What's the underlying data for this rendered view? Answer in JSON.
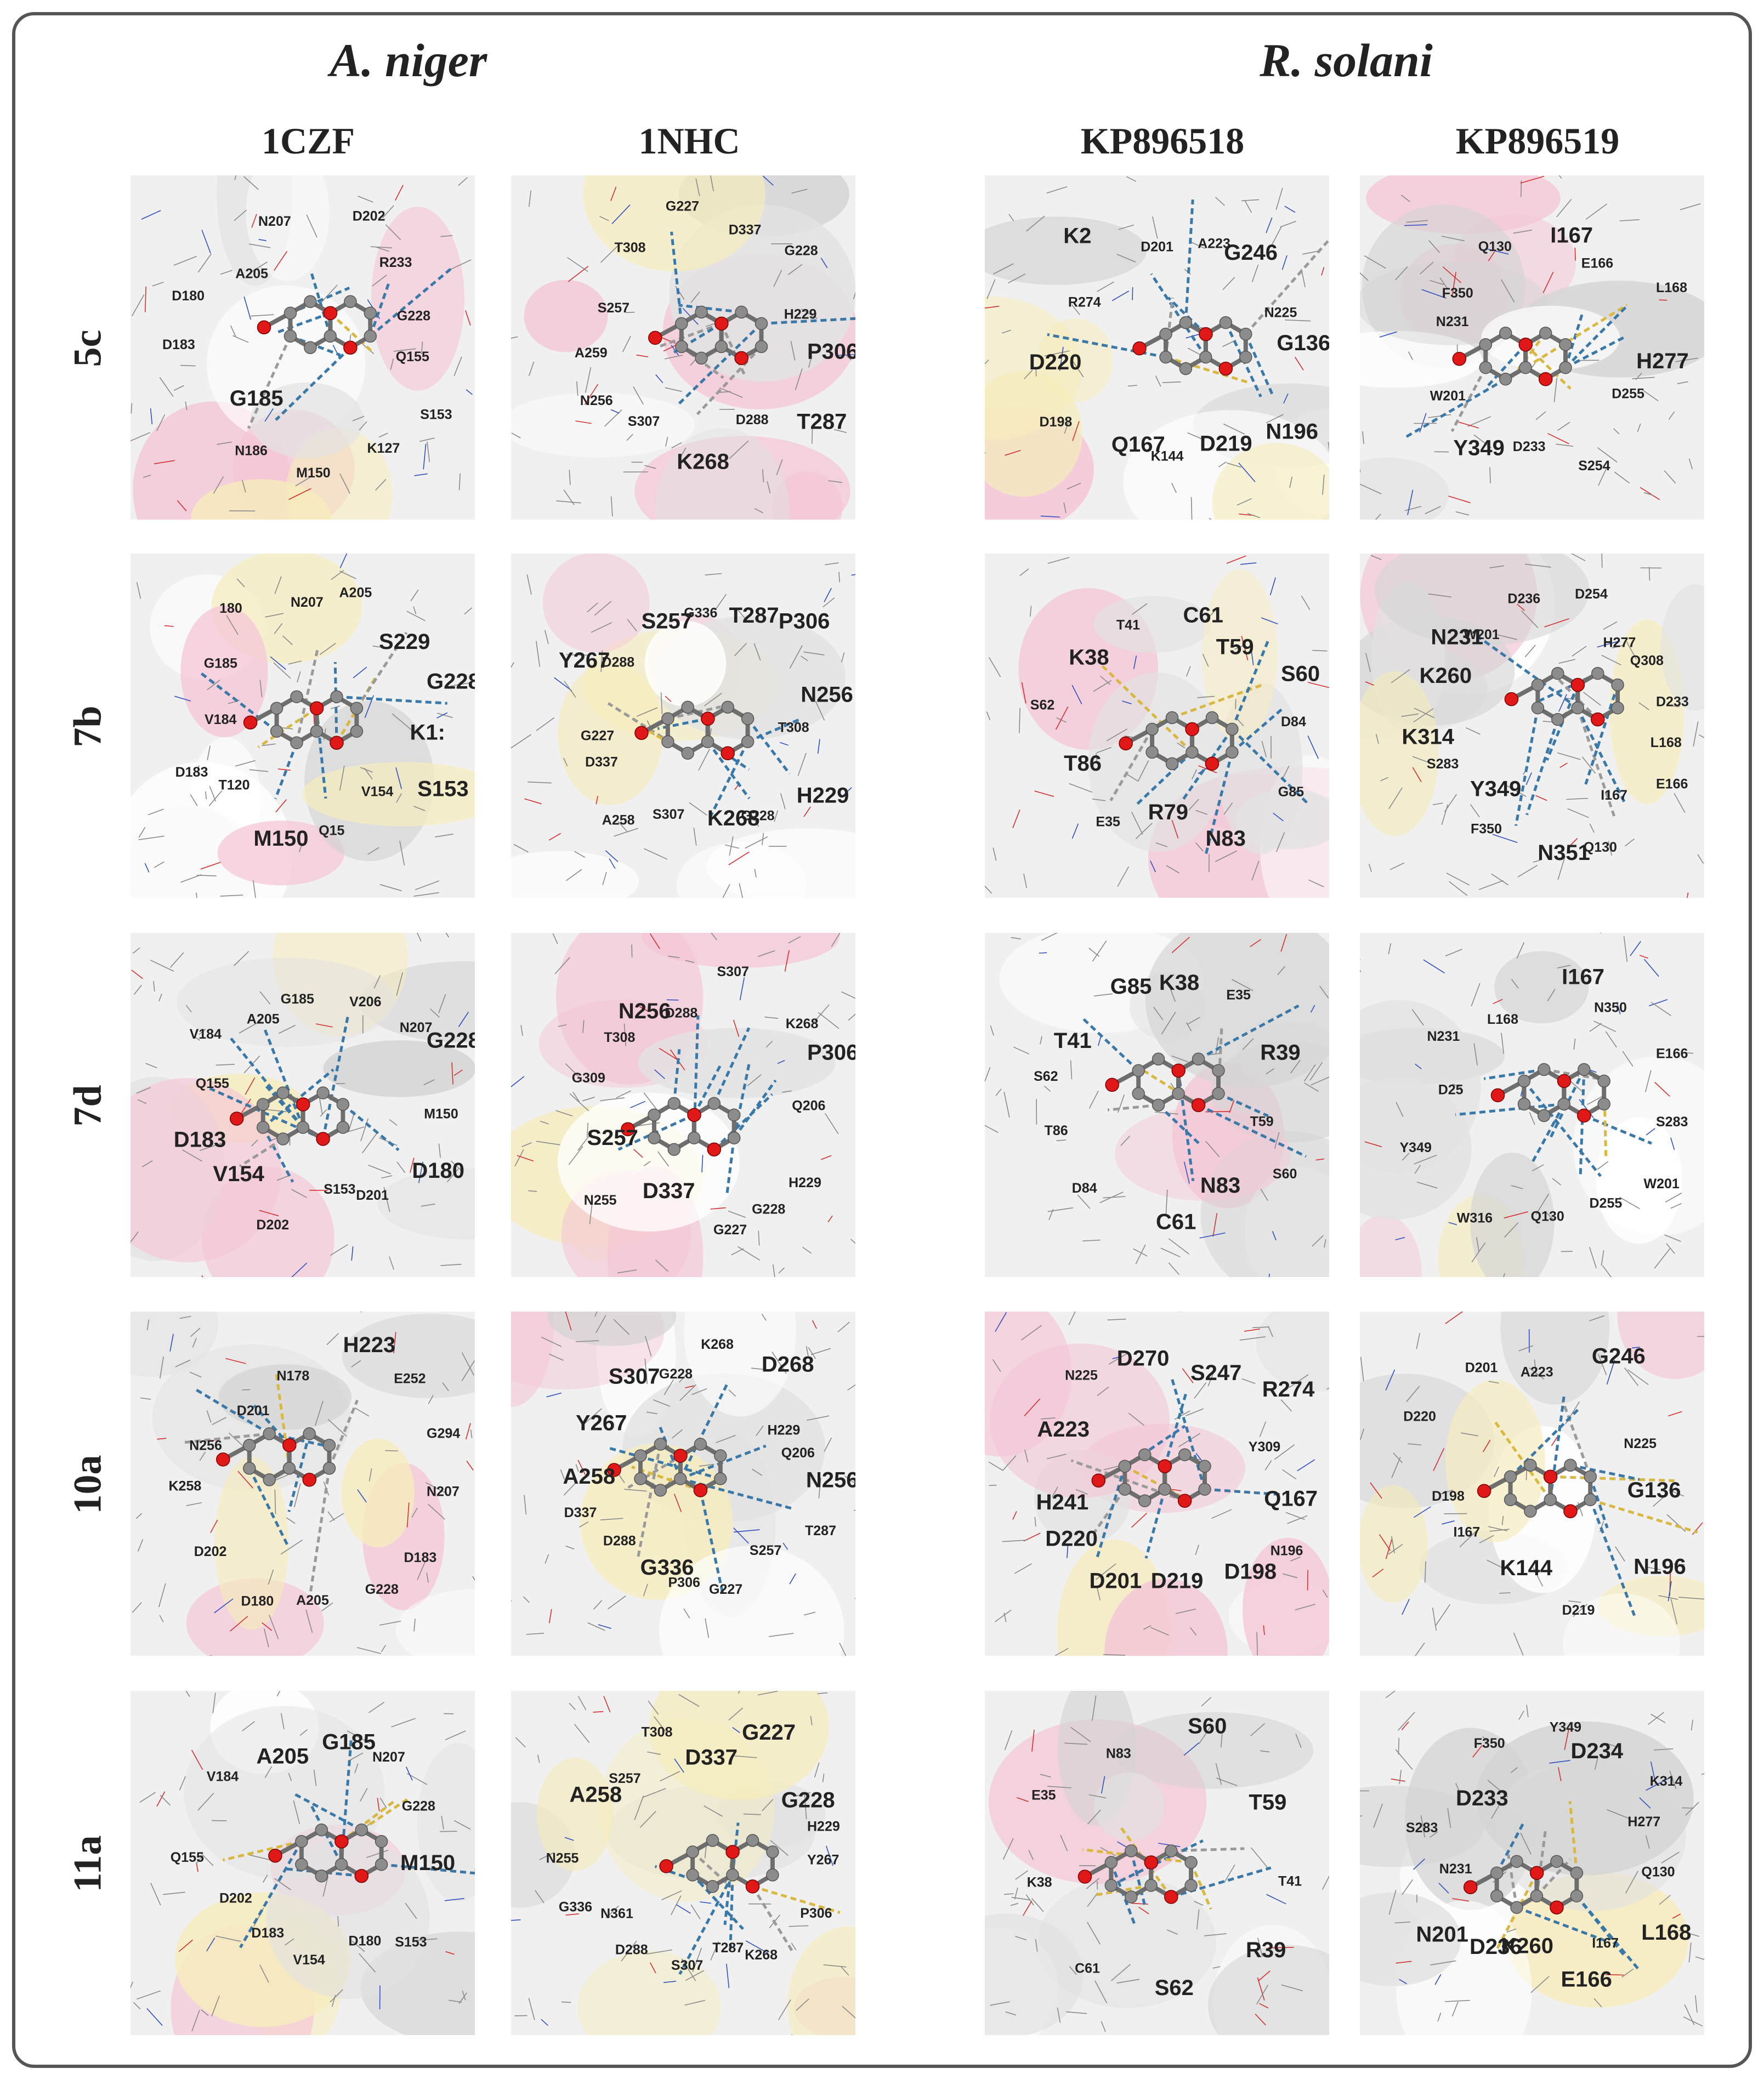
{
  "organisms": [
    "A. niger",
    "R. solani"
  ],
  "proteins": [
    "1CZF",
    "1NHC",
    "KP896518",
    "KP896519"
  ],
  "compounds": [
    "5c",
    "7b",
    "7d",
    "10a",
    "11a"
  ],
  "panels": [
    [
      [
        "Q155",
        "S153",
        "K127",
        "M150",
        "N186",
        "G185",
        "D183",
        "D180",
        "A205",
        "N207",
        "D202",
        "R233",
        "G228"
      ],
      [
        "P306",
        "T287",
        "D288",
        "K268",
        "S307",
        "N256",
        "A259",
        "S257",
        "T308",
        "G227",
        "D337",
        "G228",
        "H229"
      ],
      [
        "G136",
        "N196",
        "D219",
        "K144",
        "Q167",
        "D198",
        "D220",
        "R274",
        "K2",
        "D201",
        "A223",
        "G246",
        "N225"
      ],
      [
        "H277",
        "D255",
        "S254",
        "D233",
        "Y349",
        "W201",
        "N231",
        "F350",
        "Q130",
        "I167",
        "E166",
        "L168"
      ]
    ],
    [
      [
        "K1:",
        "S153",
        "V154",
        "Q15",
        "M150",
        "T120",
        "D183",
        "V184",
        "G185",
        "180",
        "N207",
        "A205",
        "S229",
        "G228"
      ],
      [
        "T308",
        "H229",
        "G228",
        "K268",
        "S307",
        "A258",
        "D337",
        "G227",
        "Y267",
        "D288",
        "S257",
        "G336",
        "T287",
        "P306",
        "N256"
      ],
      [
        "D84",
        "G85",
        "N83",
        "R79",
        "E35",
        "T86",
        "S62",
        "K38",
        "T41",
        "C61",
        "T59",
        "S60"
      ],
      [
        "L168",
        "E166",
        "I167",
        "Q130",
        "N351",
        "F350",
        "Y349",
        "S283",
        "K314",
        "K260",
        "N231",
        "W201",
        "D236",
        "D254",
        "H277",
        "Q308",
        "D233"
      ]
    ],
    [
      [
        "M150",
        "D180",
        "D201",
        "S153",
        "D202",
        "V154",
        "D183",
        "Q155",
        "V184",
        "A205",
        "G185",
        "V206",
        "N207",
        "G228"
      ],
      [
        "Q206",
        "H229",
        "G228",
        "G227",
        "D337",
        "N255",
        "S257",
        "G309",
        "T308",
        "N256",
        "D288",
        "S307",
        "K268",
        "P306"
      ],
      [
        "T59",
        "S60",
        "N83",
        "C61",
        "D84",
        "T86",
        "S62",
        "T41",
        "G85",
        "K38",
        "E35",
        "R39"
      ],
      [
        "S283",
        "W201",
        "D255",
        "Q130",
        "W316",
        "Y349",
        "D25",
        "N231",
        "L168",
        "I167",
        "N350",
        "E166"
      ]
    ],
    [
      [
        "N207",
        "D183",
        "G228",
        "A205",
        "D180",
        "D202",
        "K258",
        "N256",
        "D201",
        "N178",
        "H223",
        "E252",
        "G294"
      ],
      [
        "N256",
        "T287",
        "S257",
        "G227",
        "P306",
        "G336",
        "D288",
        "D337",
        "A258",
        "Y267",
        "S307",
        "G228",
        "K268",
        "D268",
        "H229",
        "Q206"
      ],
      [
        "Q167",
        "N196",
        "D198",
        "D219",
        "D201",
        "D220",
        "H241",
        "A223",
        "N225",
        "D270",
        "S247",
        "R274",
        "Y309"
      ],
      [
        "G136",
        "N196",
        "D219",
        "K144",
        "I167",
        "D198",
        "D220",
        "D201",
        "A223",
        "G246",
        "N225"
      ]
    ],
    [
      [
        "M150",
        "S153",
        "D180",
        "V154",
        "D183",
        "D202",
        "Q155",
        "V184",
        "A205",
        "G185",
        "N207",
        "G228"
      ],
      [
        "Y267",
        "P306",
        "K268",
        "T287",
        "S307",
        "D288",
        "N361",
        "G336",
        "N255",
        "A258",
        "S257",
        "T308",
        "D337",
        "G227",
        "G228",
        "H229"
      ],
      [
        "T41",
        "R39",
        "S62",
        "C61",
        "K38",
        "E35",
        "N83",
        "S60",
        "T59"
      ],
      [
        "Q130",
        "L168",
        "I167",
        "E166",
        "K260",
        "D236",
        "N201",
        "N231",
        "S283",
        "D233",
        "F350",
        "Y349",
        "D234",
        "K314",
        "H277"
      ]
    ]
  ],
  "colors": {
    "carbon": "#8c8c8c",
    "oxygen": "#e01818",
    "hbond": "#3a78a8",
    "hydrophobic": "#9a9a9a",
    "other": "#d8b840",
    "surface": "#f0f0f0",
    "pink": "#f4c6d6",
    "yellow": "#f6ecbc",
    "frame": "#555555"
  }
}
